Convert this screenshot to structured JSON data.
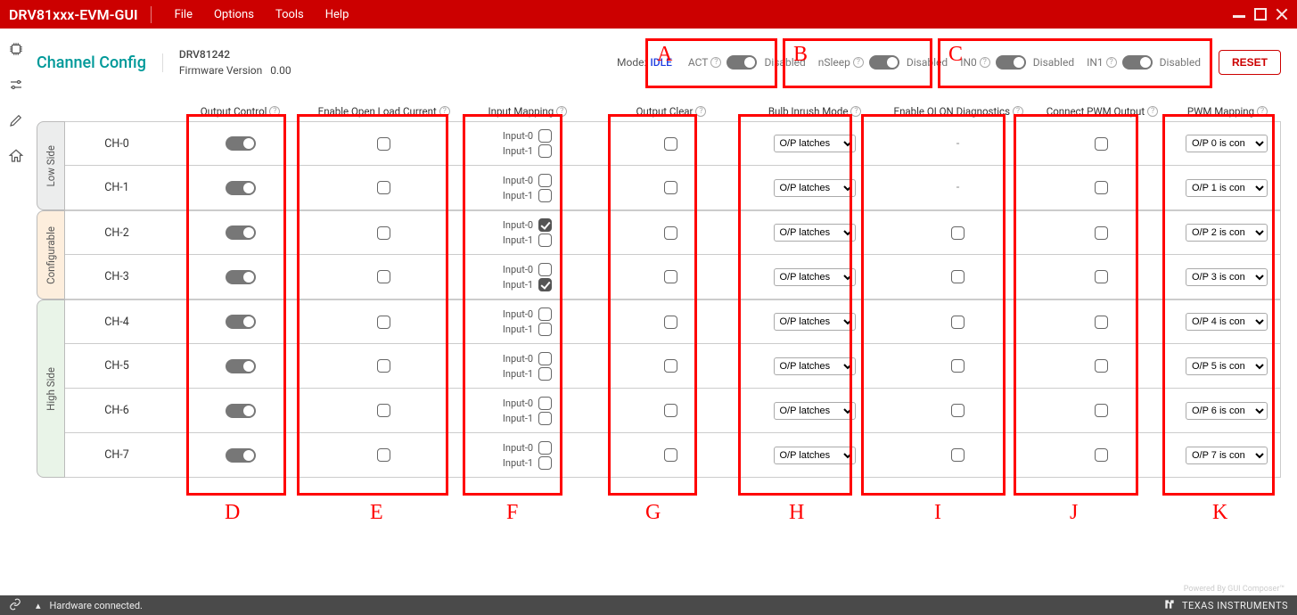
{
  "app_title": "DRV81xxx-EVM-GUI",
  "menu": {
    "file": "File",
    "options": "Options",
    "tools": "Tools",
    "help": "Help"
  },
  "page": {
    "title": "Channel Config",
    "device": "DRV81242",
    "fw_label": "Firmware Version",
    "fw_value": "0.00",
    "mode_label": "Mode:",
    "mode_value": "IDLE",
    "reset": "RESET"
  },
  "top_toggles": {
    "act": {
      "label": "ACT",
      "state": "Disabled"
    },
    "nsleep": {
      "label": "nSleep",
      "state": "Disabled"
    },
    "in0": {
      "label": "IN0",
      "state": "Disabled"
    },
    "in1": {
      "label": "IN1",
      "state": "Disabled"
    }
  },
  "columns": {
    "output_control": "Output Control",
    "enable_ol": "Enable Open Load Current",
    "input_mapping": "Input Mapping",
    "output_clear": "Output Clear",
    "bulb": "Bulb Inrush Mode",
    "olon": "Enable OLON Diagnostics",
    "connect_pwm": "Connect PWM Output",
    "pwm_mapping": "PWM Mapping"
  },
  "groups": {
    "low": "Low Side",
    "conf": "Configurable",
    "high": "High Side"
  },
  "input_labels": {
    "i0": "Input-0",
    "i1": "Input-1"
  },
  "bulb_option": "O/P latches",
  "channels": [
    {
      "name": "CH-0",
      "group": "low",
      "in0": false,
      "in1": false,
      "olon_na": true,
      "pwm": "O/P 0 is con"
    },
    {
      "name": "CH-1",
      "group": "low",
      "in0": false,
      "in1": false,
      "olon_na": true,
      "pwm": "O/P 1 is con"
    },
    {
      "name": "CH-2",
      "group": "conf",
      "in0": true,
      "in1": false,
      "olon_na": false,
      "pwm": "O/P 2 is con"
    },
    {
      "name": "CH-3",
      "group": "conf",
      "in0": false,
      "in1": true,
      "olon_na": false,
      "pwm": "O/P 3 is con"
    },
    {
      "name": "CH-4",
      "group": "high",
      "in0": false,
      "in1": false,
      "olon_na": false,
      "pwm": "O/P 4 is con"
    },
    {
      "name": "CH-5",
      "group": "high",
      "in0": false,
      "in1": false,
      "olon_na": false,
      "pwm": "O/P 5 is con"
    },
    {
      "name": "CH-6",
      "group": "high",
      "in0": false,
      "in1": false,
      "olon_na": false,
      "pwm": "O/P 6 is con"
    },
    {
      "name": "CH-7",
      "group": "high",
      "in0": false,
      "in1": false,
      "olon_na": false,
      "pwm": "O/P 7 is con"
    }
  ],
  "annotations": {
    "A": "A",
    "B": "B",
    "C": "C",
    "D": "D",
    "E": "E",
    "F": "F",
    "G": "G",
    "H": "H",
    "I": "I",
    "J": "J",
    "K": "K"
  },
  "footer": {
    "status": "Hardware connected.",
    "powered": "Powered By GUI Composer™",
    "ti": "TEXAS INSTRUMENTS"
  },
  "colors": {
    "brand_red": "#cc0000",
    "teal": "#009999",
    "annotation_red": "#ff0000",
    "group_low_bg": "#eceded",
    "group_conf_bg": "#fdeedd",
    "group_high_bg": "#e9f4e8",
    "footer_bg": "#4a4a4a"
  }
}
